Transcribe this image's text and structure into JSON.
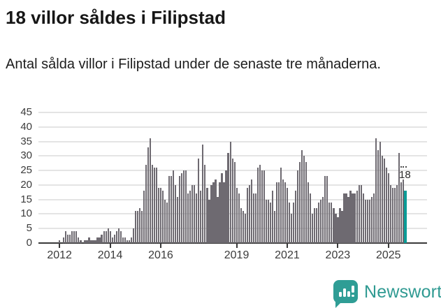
{
  "header": {
    "title": "18 villor såldes i Filipstad",
    "subtitle": "Antal sålda villor i Filipstad under de senaste tre månaderna."
  },
  "chart_data": {
    "type": "bar",
    "title": "18 villor såldes i Filipstad",
    "subtitle": "Antal sålda villor i Filipstad under de senaste tre månaderna.",
    "unit": "antal sålda villor (rullande 3 månader)",
    "x_start_month": "2011-04",
    "x_frequency": "monthly",
    "values": [
      0,
      0,
      0,
      0,
      0,
      0,
      0,
      0,
      0,
      1,
      0,
      2,
      4,
      3,
      3,
      4,
      4,
      4,
      2,
      1,
      0,
      1,
      1,
      2,
      1,
      1,
      1,
      2,
      2,
      3,
      4,
      4,
      5,
      4,
      2,
      3,
      4,
      5,
      4,
      2,
      2,
      1,
      1,
      2,
      5,
      11,
      11,
      12,
      11,
      18,
      27,
      33,
      36,
      27,
      26,
      26,
      19,
      19,
      18,
      15,
      14,
      23,
      23,
      25,
      20,
      16,
      23,
      24,
      25,
      25,
      17,
      18,
      20,
      20,
      17,
      29,
      18,
      34,
      27,
      19,
      15,
      20,
      21,
      22,
      16,
      21,
      24,
      21,
      25,
      31,
      35,
      29,
      28,
      19,
      17,
      12,
      11,
      10,
      19,
      20,
      22,
      17,
      17,
      26,
      27,
      25,
      25,
      15,
      15,
      14,
      18,
      11,
      21,
      21,
      26,
      22,
      21,
      19,
      14,
      10,
      14,
      18,
      25,
      28,
      32,
      30,
      28,
      21,
      17,
      10,
      12,
      12,
      14,
      15,
      16,
      23,
      23,
      14,
      14,
      12,
      10,
      9,
      12,
      11,
      17,
      17,
      16,
      18,
      17,
      17,
      18,
      20,
      20,
      17,
      15,
      15,
      15,
      16,
      17,
      36,
      32,
      35,
      30,
      29,
      26,
      24,
      20,
      19,
      19,
      20,
      31,
      21,
      22,
      18
    ],
    "highlight": {
      "index": 173,
      "value": 18,
      "label": "18",
      "color": "#0a9b96"
    },
    "bar_color": "#6e6a71",
    "y_ticks": [
      0,
      5,
      10,
      15,
      20,
      25,
      30,
      35,
      40,
      45
    ],
    "ylim": [
      0,
      45
    ],
    "x_tick_years": [
      2012,
      2014,
      2016,
      2019,
      2021,
      2023,
      2025
    ],
    "grid": true,
    "legend": false
  },
  "colors": {
    "bar": "#6e6a71",
    "highlight": "#0a9b96",
    "gridline": "#e4e4e4",
    "axis": "#3a3a3a",
    "brand": "#2f9d95"
  },
  "footer": {
    "brand": "Newsworthy"
  }
}
